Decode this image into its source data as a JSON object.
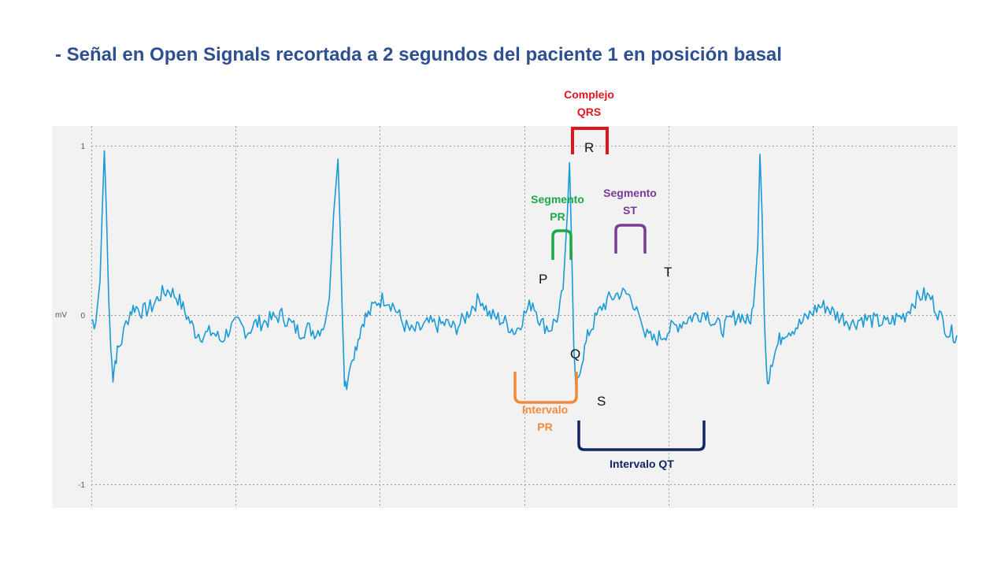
{
  "slide": {
    "title": "- Señal en Open Signals recortada a 2 segundos del paciente 1 en posición basal"
  },
  "colors": {
    "title": "#2e5090",
    "signal": "#1a9ad6",
    "plot_background": "#f2f2f2",
    "qrs": "#e0141e",
    "segment_pr": "#1aa84a",
    "segment_st": "#7a3a96",
    "interval_pr": "#ef8a3c",
    "interval_qt": "#122463"
  },
  "chart_data": {
    "type": "line",
    "title": "",
    "xlabel": "",
    "ylabel": "mV",
    "ylim": [
      -1.05,
      1.1
    ],
    "xlim": [
      0,
      2.0
    ],
    "yticks": [
      1,
      0,
      -1
    ],
    "ytick_labels": [
      "1",
      "0",
      "-1"
    ],
    "grid": true,
    "series": [
      {
        "values_description_none": null,
        "x": [
          0.0,
          0.01,
          0.02,
          0.025,
          0.03,
          0.035,
          0.04,
          0.045,
          0.05,
          0.055,
          0.06,
          0.07,
          0.08,
          0.09,
          0.1,
          0.12,
          0.14,
          0.16,
          0.18,
          0.2,
          0.22,
          0.24,
          0.26,
          0.28,
          0.3,
          0.32,
          0.34,
          0.36,
          0.38,
          0.4,
          0.42,
          0.44,
          0.46,
          0.48,
          0.5,
          0.52,
          0.54,
          0.55,
          0.56,
          0.57,
          0.575,
          0.58,
          0.585,
          0.59,
          0.6,
          0.61,
          0.62,
          0.63,
          0.64,
          0.66,
          0.68,
          0.7,
          0.72,
          0.74,
          0.76,
          0.78,
          0.8,
          0.82,
          0.84,
          0.86,
          0.88,
          0.9,
          0.92,
          0.94,
          0.96,
          0.98,
          1.0,
          1.02,
          1.04,
          1.06,
          1.08,
          1.09,
          1.1,
          1.105,
          1.11,
          1.115,
          1.12,
          1.125,
          1.13,
          1.14,
          1.15,
          1.16,
          1.18,
          1.2,
          1.22,
          1.24,
          1.26,
          1.28,
          1.3,
          1.32,
          1.34,
          1.36,
          1.38,
          1.4,
          1.42,
          1.44,
          1.46,
          1.48,
          1.5,
          1.52,
          1.53,
          1.54,
          1.545,
          1.55,
          1.555,
          1.56,
          1.565,
          1.57,
          1.58,
          1.59,
          1.6,
          1.62,
          1.64,
          1.66,
          1.68,
          1.7,
          1.72,
          1.74,
          1.76,
          1.78,
          1.8,
          1.82,
          1.84,
          1.86,
          1.88,
          1.9,
          1.92,
          1.94,
          1.96,
          1.98,
          2.0
        ],
        "y": [
          -0.03,
          -0.05,
          0.2,
          0.6,
          0.97,
          0.6,
          0.1,
          -0.2,
          -0.37,
          -0.27,
          -0.22,
          -0.15,
          -0.05,
          0.02,
          0.05,
          0.02,
          0.05,
          0.12,
          0.15,
          0.1,
          0.0,
          -0.1,
          -0.12,
          -0.1,
          -0.15,
          -0.08,
          -0.05,
          -0.1,
          -0.05,
          -0.04,
          -0.02,
          0.0,
          -0.05,
          -0.1,
          -0.08,
          -0.1,
          -0.05,
          0.1,
          0.6,
          0.92,
          0.5,
          0.0,
          -0.4,
          -0.44,
          -0.25,
          -0.2,
          -0.1,
          -0.02,
          0.0,
          0.08,
          0.1,
          0.05,
          -0.05,
          -0.1,
          -0.08,
          -0.05,
          -0.06,
          -0.05,
          -0.08,
          -0.03,
          0.05,
          0.1,
          0.0,
          -0.02,
          -0.05,
          -0.1,
          0.0,
          0.08,
          -0.05,
          -0.08,
          0.0,
          0.15,
          0.6,
          0.9,
          0.4,
          -0.2,
          -0.44,
          -0.4,
          -0.3,
          -0.2,
          -0.1,
          -0.05,
          0.05,
          0.1,
          0.13,
          0.12,
          0.05,
          -0.12,
          -0.15,
          -0.12,
          -0.08,
          -0.05,
          -0.02,
          0.0,
          0.02,
          -0.05,
          -0.08,
          -0.02,
          0.0,
          -0.05,
          0.05,
          0.4,
          0.95,
          0.6,
          0.0,
          -0.33,
          -0.38,
          -0.28,
          -0.22,
          -0.15,
          -0.1,
          -0.08,
          -0.05,
          0.0,
          0.05,
          0.05,
          0.0,
          -0.02,
          -0.05,
          -0.02,
          -0.03,
          -0.04,
          -0.05,
          -0.02,
          0.0,
          0.08,
          0.12,
          0.1,
          0.0,
          -0.1,
          -0.12
        ]
      }
    ],
    "wave_labels": [
      "P",
      "Q",
      "R",
      "S",
      "T"
    ],
    "annotations": {
      "qrs": "Complejo\nQRS",
      "segment_pr": "Segmento\nPR",
      "segment_st": "Segmento\nST",
      "interval_pr": "Intervalo\nPR",
      "interval_qt": "Intervalo QT"
    }
  }
}
